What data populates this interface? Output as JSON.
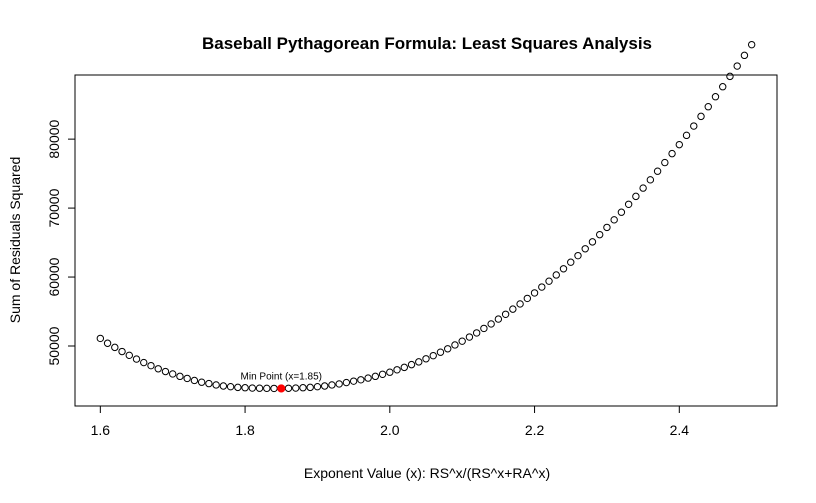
{
  "chart_data": {
    "type": "scatter",
    "title": "Baseball Pythagorean Formula: Least Squares Analysis",
    "xlabel": "Exponent Value (x): RS^x/(RS^x+RA^x)",
    "ylabel": "Sum of Residuals Squared",
    "xlim": [
      1.565,
      2.535
    ],
    "ylim": [
      41300,
      89300
    ],
    "x_ticks": [
      1.6,
      1.8,
      2.0,
      2.2,
      2.4
    ],
    "x_tick_labels": [
      "1.6",
      "1.8",
      "2.0",
      "2.2",
      "2.4"
    ],
    "y_ticks": [
      50000,
      60000,
      70000,
      80000
    ],
    "y_tick_labels": [
      "50000",
      "60000",
      "70000",
      "80000"
    ],
    "grid": false,
    "series": [
      {
        "x": [
          1.6,
          1.61,
          1.62,
          1.63,
          1.64,
          1.65,
          1.66,
          1.67,
          1.68,
          1.69,
          1.7,
          1.71,
          1.72,
          1.73,
          1.74,
          1.75,
          1.76,
          1.77,
          1.78,
          1.79,
          1.8,
          1.81,
          1.82,
          1.83,
          1.84,
          1.85,
          1.86,
          1.87,
          1.88,
          1.89,
          1.9,
          1.91,
          1.92,
          1.93,
          1.94,
          1.95,
          1.96,
          1.97,
          1.98,
          1.99,
          2.0,
          2.01,
          2.02,
          2.03,
          2.04,
          2.05,
          2.06,
          2.07,
          2.08,
          2.09,
          2.1,
          2.11,
          2.12,
          2.13,
          2.14,
          2.15,
          2.16,
          2.17,
          2.18,
          2.19,
          2.2,
          2.21,
          2.22,
          2.23,
          2.24,
          2.25,
          2.26,
          2.27,
          2.28,
          2.29,
          2.3,
          2.31,
          2.32,
          2.33,
          2.34,
          2.35,
          2.36,
          2.37,
          2.38,
          2.39,
          2.4,
          2.41,
          2.42,
          2.43,
          2.44,
          2.45,
          2.46,
          2.47,
          2.48,
          2.49,
          2.5
        ],
        "y": [
          51100,
          50400,
          49800,
          49200,
          48650,
          48100,
          47600,
          47150,
          46700,
          46300,
          45950,
          45600,
          45300,
          45000,
          44750,
          44550,
          44350,
          44200,
          44100,
          44000,
          43950,
          43900,
          43880,
          43860,
          43850,
          43850,
          43870,
          43900,
          43950,
          44000,
          44100,
          44200,
          44350,
          44500,
          44700,
          44900,
          45100,
          45350,
          45600,
          45900,
          46200,
          46550,
          46900,
          47300,
          47700,
          48150,
          48600,
          49100,
          49600,
          50150,
          50700,
          51300,
          51900,
          52550,
          53200,
          53900,
          54600,
          55350,
          56100,
          56900,
          57700,
          58550,
          59400,
          60300,
          61200,
          62150,
          63100,
          64100,
          65100,
          66150,
          67200,
          68300,
          69400,
          70550,
          71700,
          72900,
          74100,
          75350,
          76600,
          77900,
          79200,
          80550,
          81900,
          83300,
          84700,
          86150,
          87600,
          89100,
          90600,
          92150,
          93700
        ]
      }
    ],
    "highlight": {
      "x": 1.85,
      "y": 43850,
      "color": "#ff0000"
    },
    "annotation": {
      "text": "Min Point (x=1.85)",
      "x": 1.85,
      "y": 43850
    }
  }
}
